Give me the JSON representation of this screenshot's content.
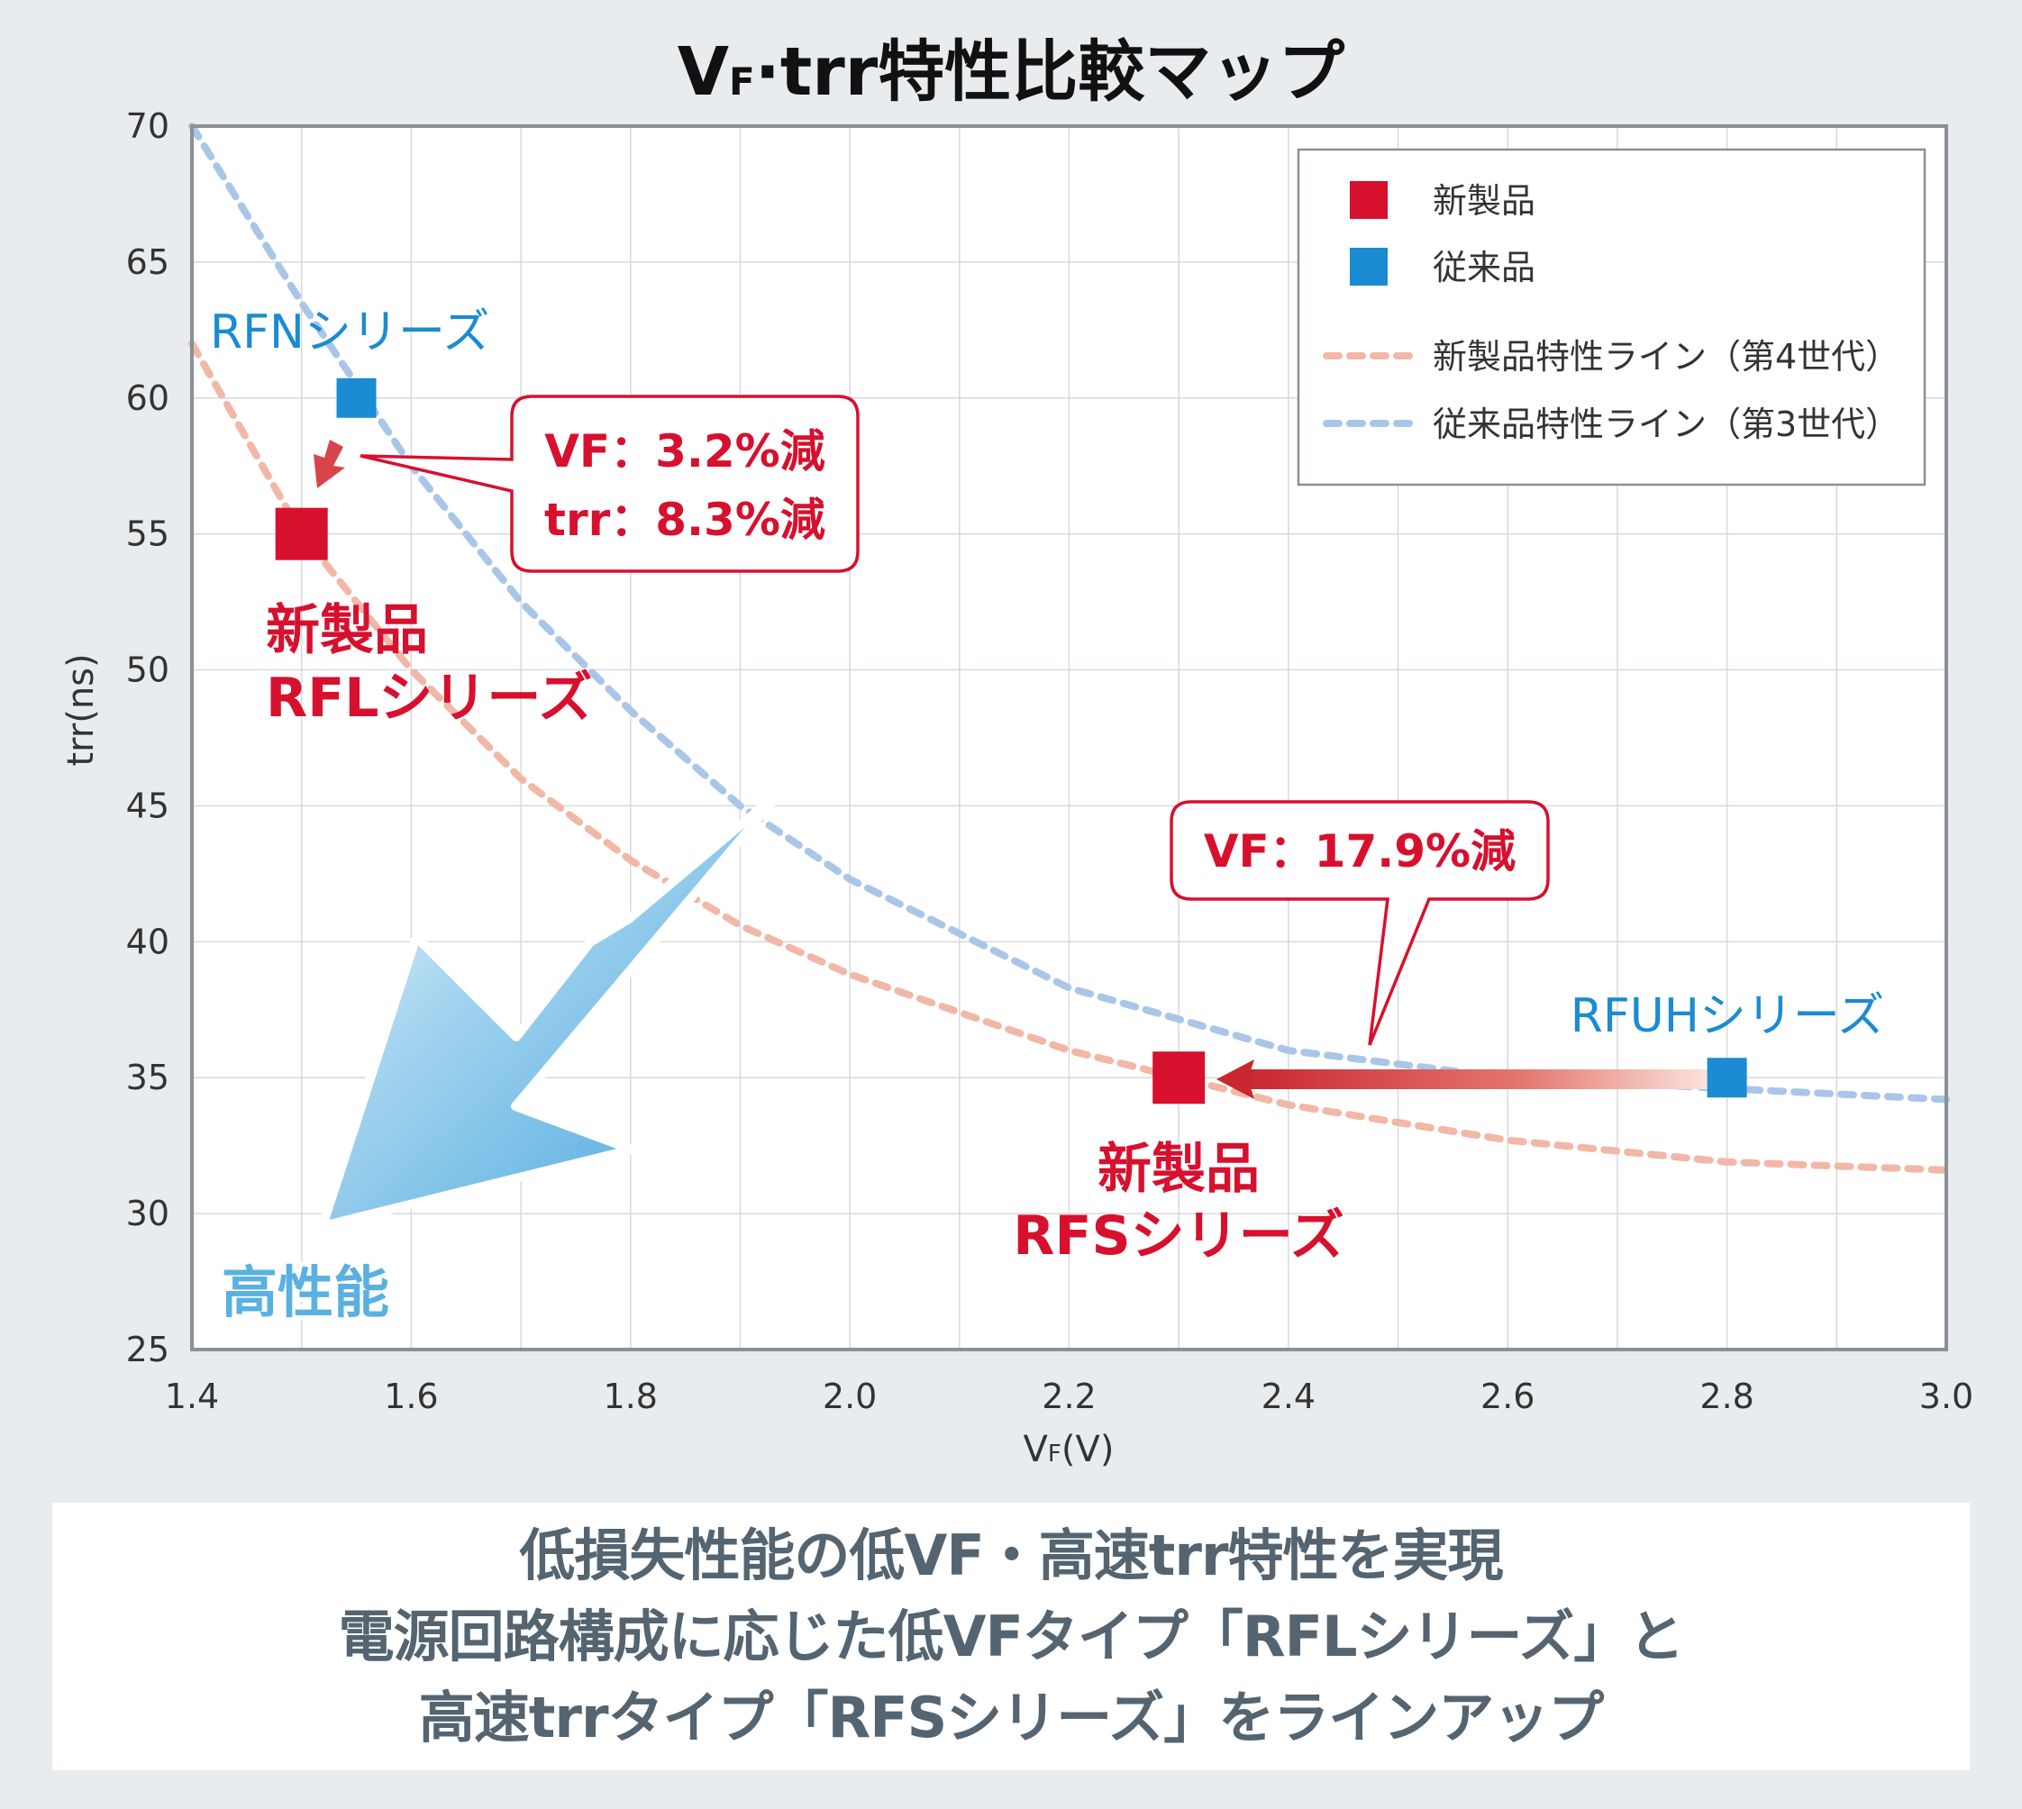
{
  "chart_data": {
    "type": "scatter",
    "title_main": "V",
    "title_sub": "F",
    "title_rest": "·trr特性比較マップ",
    "xlabel_main": "V",
    "xlabel_sub": "F",
    "xlabel_rest": "(V)",
    "ylabel": "trr(ns)",
    "xlim": [
      1.4,
      3.0
    ],
    "ylim": [
      25,
      70
    ],
    "x_ticks": [
      "1.4",
      "1.6",
      "1.8",
      "2.0",
      "2.2",
      "2.4",
      "2.6",
      "2.8",
      "3.0"
    ],
    "y_ticks": [
      "25",
      "30",
      "35",
      "40",
      "45",
      "50",
      "55",
      "60",
      "65",
      "70"
    ],
    "grid": true,
    "legend_position": "top-right",
    "legend": [
      {
        "label": "新製品",
        "kind": "square",
        "color": "#d7102e"
      },
      {
        "label": "従来品",
        "kind": "square",
        "color": "#1b8bd2"
      },
      {
        "label": "新製品特性ライン（第4世代）",
        "kind": "dashed",
        "color": "#f2b7a6"
      },
      {
        "label": "従来品特性ライン（第3世代）",
        "kind": "dashed",
        "color": "#a9c6e8"
      }
    ],
    "series": [
      {
        "name": "新製品",
        "color": "#d7102e",
        "points": [
          {
            "x": 1.5,
            "y": 55,
            "label_lines": [
              "新製品",
              "RFLシリーズ"
            ]
          },
          {
            "x": 2.3,
            "y": 35,
            "label_lines": [
              "新製品",
              "RFSシリーズ"
            ]
          }
        ]
      },
      {
        "name": "従来品",
        "color": "#1b8bd2",
        "points": [
          {
            "x": 1.55,
            "y": 60,
            "label": "RFNシリーズ"
          },
          {
            "x": 2.8,
            "y": 35,
            "label": "RFUHシリーズ"
          }
        ]
      }
    ],
    "curves": [
      {
        "name": "新製品特性ライン（第4世代）",
        "color": "#f2b7a6",
        "x": [
          1.4,
          1.5,
          1.6,
          1.7,
          1.8,
          1.9,
          2.0,
          2.2,
          2.4,
          2.6,
          2.8,
          3.0
        ],
        "y": [
          62,
          55,
          50,
          46,
          43,
          40.6,
          38.8,
          36,
          34,
          32.7,
          31.9,
          31.6
        ]
      },
      {
        "name": "従来品特性ライン（第3世代）",
        "color": "#a9c6e8",
        "x": [
          1.4,
          1.5,
          1.6,
          1.7,
          1.8,
          1.9,
          2.0,
          2.2,
          2.4,
          2.6,
          2.8,
          3.0
        ],
        "y": [
          70,
          63.5,
          57.5,
          52.5,
          48.5,
          45,
          42.3,
          38.3,
          36,
          35,
          34.6,
          34.2
        ]
      }
    ],
    "annotations": [
      {
        "lines": [
          "VF：3.2%減",
          "trr：8.3%減"
        ],
        "color": "#d7102e"
      },
      {
        "lines": [
          "VF：17.9%減"
        ],
        "color": "#d7102e"
      },
      {
        "text": "高性能",
        "color": "#5ab1e1"
      }
    ]
  },
  "footer": {
    "line1": "低損失性能の低VF・高速trr特性を実現",
    "line2": "電源回路構成に応じた低VFタイプ「RFLシリーズ」と",
    "line3": "高速trrタイプ「RFSシリーズ」をラインアップ"
  }
}
